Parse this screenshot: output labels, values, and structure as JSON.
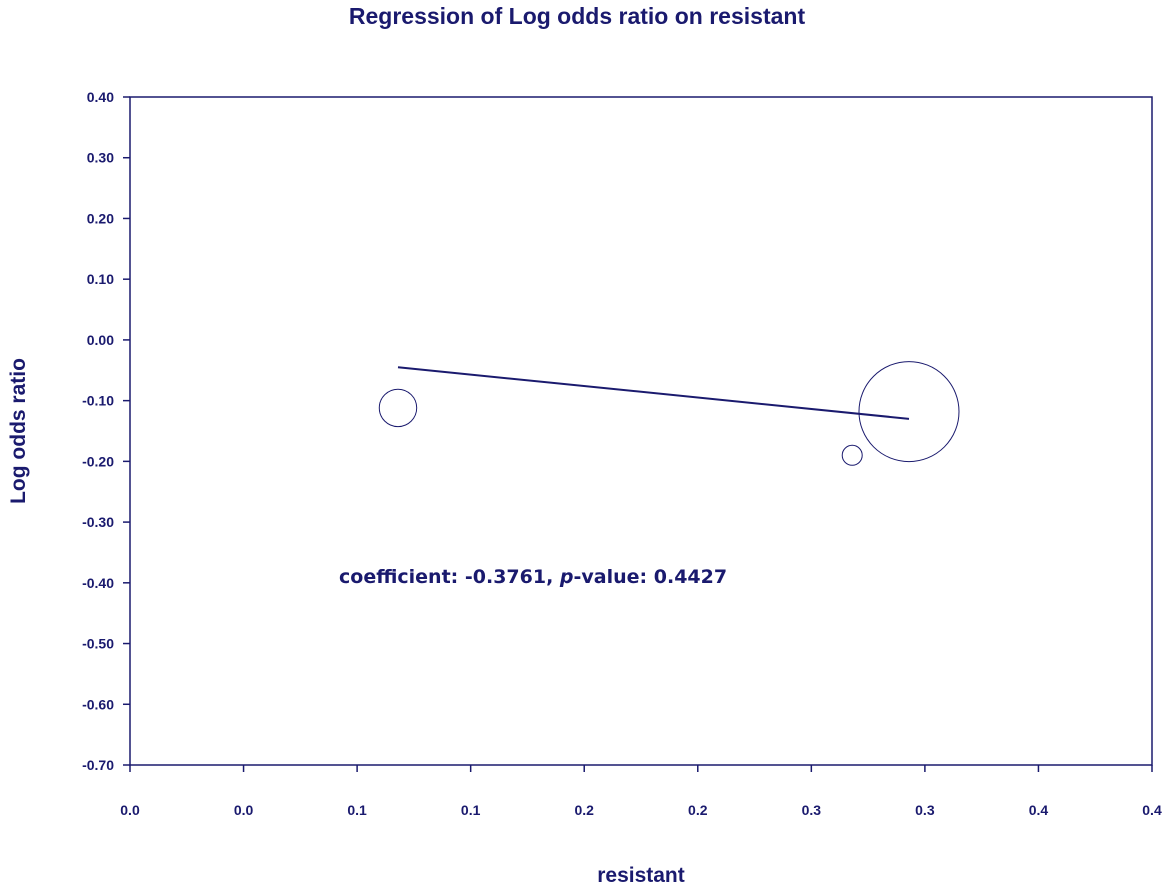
{
  "colors": {
    "primary": "#1a1a6e",
    "background": "#ffffff"
  },
  "chart_data": {
    "type": "scatter",
    "title": "Regression of Log odds ratio on resistant",
    "xlabel": "resistant",
    "ylabel": "Log odds ratio",
    "xlim": [
      0.0,
      0.45
    ],
    "ylim": [
      -0.7,
      0.4
    ],
    "x_ticks": [
      0.0,
      0.05,
      0.1,
      0.15,
      0.2,
      0.25,
      0.3,
      0.35,
      0.4,
      0.45
    ],
    "x_tick_labels": [
      "0.0",
      "0.0",
      "0.1",
      "0.1",
      "0.2",
      "0.2",
      "0.3",
      "0.3",
      "0.4",
      "0.4"
    ],
    "y_ticks": [
      0.4,
      0.3,
      0.2,
      0.1,
      0.0,
      -0.1,
      -0.2,
      -0.3,
      -0.4,
      -0.5,
      -0.6,
      -0.7
    ],
    "y_tick_labels": [
      "0.40",
      "0.30",
      "0.20",
      "0.10",
      "0.00",
      "-0.10",
      "-0.20",
      "-0.30",
      "-0.40",
      "-0.50",
      "-0.60",
      "-0.70"
    ],
    "points": [
      {
        "x": 0.118,
        "y": -0.112,
        "weight": 0.14
      },
      {
        "x": 0.318,
        "y": -0.19,
        "weight": 0.04
      },
      {
        "x": 0.343,
        "y": -0.118,
        "weight": 1.0
      }
    ],
    "regression_line": {
      "x": [
        0.118,
        0.343
      ],
      "y": [
        -0.045,
        -0.13
      ]
    },
    "grid": false,
    "annotation": {
      "prefix": "coefficient: -0.3761, ",
      "italic": "p",
      "suffix": "-value: 0.4427"
    }
  }
}
